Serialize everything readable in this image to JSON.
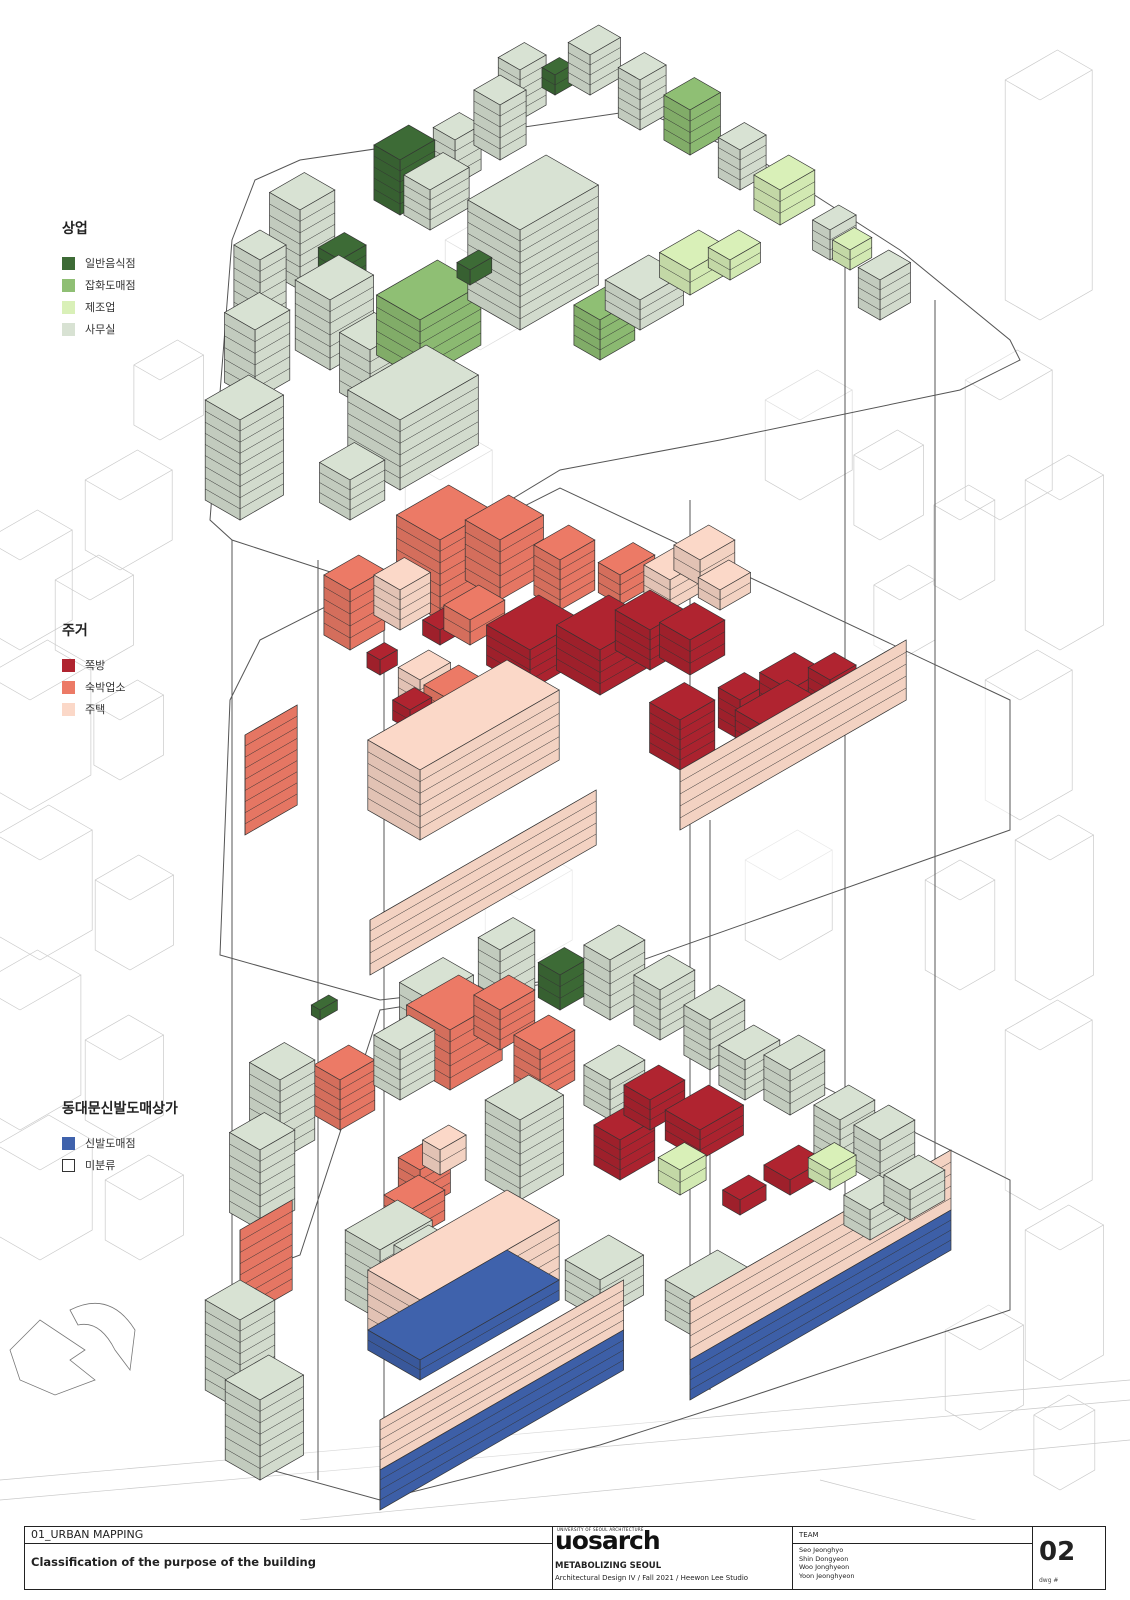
{
  "legend": {
    "commercial": {
      "title": "상업",
      "items": [
        {
          "label": "일반음식점",
          "color": "#3d6b36"
        },
        {
          "label": "잡화도매점",
          "color": "#8fbf74"
        },
        {
          "label": "제조업",
          "color": "#d9f0b8"
        },
        {
          "label": "사무실",
          "color": "#d8e2d3"
        }
      ]
    },
    "residential": {
      "title": "주거",
      "items": [
        {
          "label": "쪽방",
          "color": "#b02430"
        },
        {
          "label": "숙박업소",
          "color": "#ec7a66"
        },
        {
          "label": "주택",
          "color": "#fbd8c8"
        }
      ]
    },
    "market": {
      "title": "동대문신발도매상가",
      "items": [
        {
          "label": "신발도매점",
          "color": "#3f62ac"
        },
        {
          "label": "미분류",
          "color": "#ffffff"
        }
      ]
    }
  },
  "title_block": {
    "section": "01_URBAN MAPPING",
    "title": "Classification of the purpose of the building",
    "logo_top": "UNIVERSITY OF SEOUL ARCHITECTURE",
    "logo": "uosarch",
    "project": "METABOLIZING SEOUL",
    "course": "Architectural Design IV / Fall 2021 / Heewon Lee Studio",
    "team_label": "TEAM",
    "team": [
      "Seo Jeonghyo",
      "Shin Dongyeon",
      "Woo Jonghyeon",
      "Yoon Jeonghyeon"
    ],
    "drawing_number": "02",
    "drawing_number_label": "dwg #"
  }
}
